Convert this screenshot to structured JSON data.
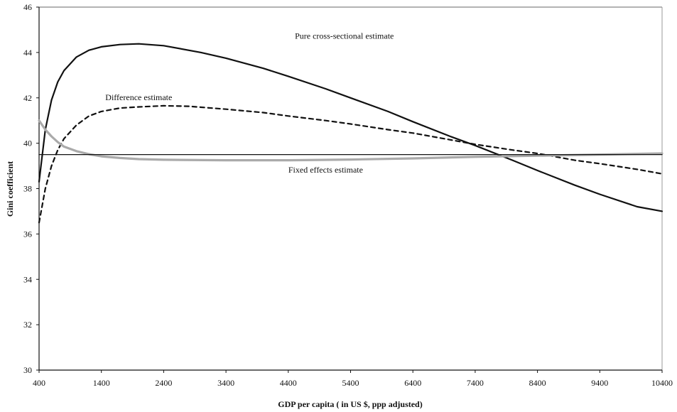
{
  "chart_data": {
    "type": "line",
    "title": "",
    "xlabel": "GDP per capita ( in US $, ppp adjusted)",
    "ylabel": "Gini coefficient",
    "xlim": [
      400,
      10400
    ],
    "ylim": [
      30,
      46
    ],
    "x_ticks": [
      400,
      1400,
      2400,
      3400,
      4400,
      5400,
      6400,
      7400,
      8400,
      9400,
      10400
    ],
    "y_ticks": [
      30,
      32,
      34,
      36,
      38,
      40,
      42,
      44,
      46
    ],
    "grid": false,
    "legend": "none",
    "series": [
      {
        "name": "Pure cross-sectional estimate",
        "color": "#111111",
        "style": "solid",
        "points": [
          [
            400,
            38.3
          ],
          [
            500,
            40.6
          ],
          [
            600,
            41.9
          ],
          [
            700,
            42.7
          ],
          [
            800,
            43.2
          ],
          [
            1000,
            43.8
          ],
          [
            1200,
            44.1
          ],
          [
            1400,
            44.25
          ],
          [
            1700,
            44.35
          ],
          [
            2000,
            44.38
          ],
          [
            2400,
            44.3
          ],
          [
            3000,
            44.0
          ],
          [
            3400,
            43.75
          ],
          [
            4000,
            43.3
          ],
          [
            4400,
            42.95
          ],
          [
            5000,
            42.4
          ],
          [
            5400,
            42.0
          ],
          [
            6000,
            41.4
          ],
          [
            6400,
            40.95
          ],
          [
            7000,
            40.3
          ],
          [
            7400,
            39.9
          ],
          [
            8000,
            39.25
          ],
          [
            8400,
            38.8
          ],
          [
            9000,
            38.15
          ],
          [
            9400,
            37.75
          ],
          [
            10000,
            37.2
          ],
          [
            10400,
            37.0
          ]
        ]
      },
      {
        "name": "Difference estimate",
        "color": "#111111",
        "style": "dashed",
        "points": [
          [
            400,
            36.5
          ],
          [
            500,
            38.0
          ],
          [
            600,
            39.0
          ],
          [
            700,
            39.7
          ],
          [
            800,
            40.2
          ],
          [
            1000,
            40.8
          ],
          [
            1200,
            41.2
          ],
          [
            1400,
            41.4
          ],
          [
            1700,
            41.55
          ],
          [
            2000,
            41.6
          ],
          [
            2400,
            41.65
          ],
          [
            2800,
            41.63
          ],
          [
            3400,
            41.5
          ],
          [
            4000,
            41.35
          ],
          [
            4400,
            41.2
          ],
          [
            5000,
            41.0
          ],
          [
            5400,
            40.85
          ],
          [
            6000,
            40.6
          ],
          [
            6400,
            40.45
          ],
          [
            7000,
            40.15
          ],
          [
            7400,
            39.95
          ],
          [
            8000,
            39.7
          ],
          [
            8400,
            39.55
          ],
          [
            9000,
            39.25
          ],
          [
            9400,
            39.1
          ],
          [
            10000,
            38.85
          ],
          [
            10400,
            38.65
          ]
        ]
      },
      {
        "name": "Fixed effects estimate",
        "color": "#aaaaaa",
        "style": "solid",
        "points": [
          [
            400,
            41.0
          ],
          [
            500,
            40.6
          ],
          [
            600,
            40.3
          ],
          [
            700,
            40.05
          ],
          [
            800,
            39.85
          ],
          [
            1000,
            39.65
          ],
          [
            1200,
            39.52
          ],
          [
            1400,
            39.42
          ],
          [
            1700,
            39.35
          ],
          [
            2000,
            39.3
          ],
          [
            2400,
            39.27
          ],
          [
            3400,
            39.25
          ],
          [
            4400,
            39.25
          ],
          [
            5400,
            39.28
          ],
          [
            6400,
            39.33
          ],
          [
            7400,
            39.4
          ],
          [
            8400,
            39.45
          ],
          [
            9400,
            39.5
          ],
          [
            10400,
            39.55
          ]
        ]
      },
      {
        "name": "",
        "color": "#111111",
        "style": "solid-thin",
        "points": [
          [
            400,
            39.5
          ],
          [
            10400,
            39.5
          ]
        ]
      }
    ],
    "annotations": [
      {
        "text": "Pure cross-sectional estimate",
        "x": 5300,
        "y": 44.6
      },
      {
        "text": "Difference estimate",
        "x": 2000,
        "y": 41.9
      },
      {
        "text": "Fixed effects estimate",
        "x": 5000,
        "y": 38.7
      }
    ]
  }
}
